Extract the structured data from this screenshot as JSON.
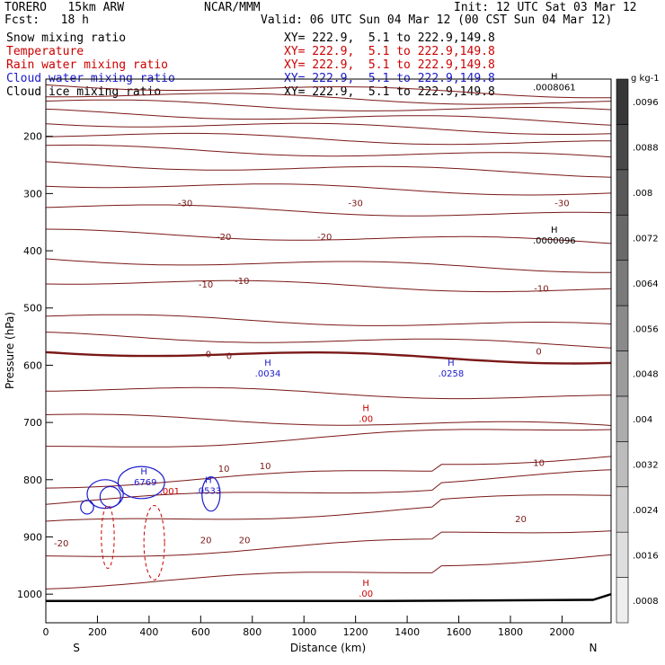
{
  "header": {
    "model": "TORERO   15km ARW",
    "center": "NCAR/MMM",
    "init": "Init: 12 UTC Sat 03 Mar 12",
    "fcst": "Fcst:   18 h",
    "valid": "Valid: 06 UTC Sun 04 Mar 12 (00 CST Sun 04 Mar 12)"
  },
  "fields": [
    {
      "name": "Snow mixing ratio",
      "xy": "XY= 222.9,  5.1 to 222.9,149.8",
      "color": "#000000"
    },
    {
      "name": "Temperature",
      "xy": "XY= 222.9,  5.1 to 222.9,149.8",
      "color": "#cc0000"
    },
    {
      "name": "Rain water mixing ratio",
      "xy": "XY= 222.9,  5.1 to 222.9,149.8",
      "color": "#cc0000"
    },
    {
      "name": "Cloud water mixing ratio",
      "xy": "XY= 222.9,  5.1 to 222.9,149.8",
      "color": "#1a1acc"
    },
    {
      "name": "Cloud ice mixing ratio",
      "xy": "XY= 222.9,  5.1 to 222.9,149.8",
      "color": "#000000"
    }
  ],
  "chart_data": {
    "type": "cross-section",
    "xlabel": "Distance (km)",
    "ylabel": "Pressure (hPa)",
    "xlim": [
      0,
      2190
    ],
    "ylim": [
      1050,
      100
    ],
    "xticks": [
      0,
      200,
      400,
      600,
      800,
      1000,
      1200,
      1400,
      1600,
      1800,
      2000
    ],
    "yticks": [
      200,
      300,
      400,
      500,
      600,
      700,
      800,
      900,
      1000
    ],
    "x_end_labels": {
      "left": "S",
      "right": "N"
    },
    "colorbar": {
      "unit": "g kg-1",
      "labels": [
        ".0008",
        ".0016",
        ".0024",
        ".0032",
        ".004",
        ".0048",
        ".0056",
        ".0064",
        ".0072",
        ".008",
        ".0088",
        ".0096"
      ],
      "levels": [
        0.0008,
        0.0016,
        0.0024,
        0.0032,
        0.004,
        0.0048,
        0.0056,
        0.0064,
        0.0072,
        0.008,
        0.0088,
        0.0096
      ]
    },
    "temperature_labels": [
      {
        "x": 540,
        "p": 316,
        "text": "-30"
      },
      {
        "x": 1200,
        "p": 316,
        "text": "-30"
      },
      {
        "x": 2000,
        "p": 316,
        "text": "-30"
      },
      {
        "x": 690,
        "p": 375,
        "text": "-20"
      },
      {
        "x": 1080,
        "p": 375,
        "text": "-20"
      },
      {
        "x": 620,
        "p": 458,
        "text": "-10"
      },
      {
        "x": 760,
        "p": 452,
        "text": "-10"
      },
      {
        "x": 1920,
        "p": 465,
        "text": "-10"
      },
      {
        "x": 630,
        "p": 580,
        "text": "0"
      },
      {
        "x": 710,
        "p": 583,
        "text": "0"
      },
      {
        "x": 1910,
        "p": 575,
        "text": "0"
      },
      {
        "x": 690,
        "p": 780,
        "text": "10"
      },
      {
        "x": 850,
        "p": 775,
        "text": "10"
      },
      {
        "x": 1910,
        "p": 770,
        "text": "10"
      },
      {
        "x": 60,
        "p": 910,
        "text": "-20"
      },
      {
        "x": 620,
        "p": 905,
        "text": "20"
      },
      {
        "x": 770,
        "p": 905,
        "text": "20"
      },
      {
        "x": 1840,
        "p": 868,
        "text": "20"
      }
    ],
    "maxima_labels": [
      {
        "x": 1970,
        "p": 110,
        "mark": "H",
        "value": ".0008061",
        "color": "#000000"
      },
      {
        "x": 1970,
        "p": 378,
        "mark": "H",
        "value": ".0000096",
        "color": "#000000"
      },
      {
        "x": 860,
        "p": 610,
        "mark": "H",
        "value": ".0034",
        "color": "#1a1acc"
      },
      {
        "x": 1570,
        "p": 610,
        "mark": "H",
        "value": ".0258",
        "color": "#1a1acc"
      },
      {
        "x": 1240,
        "p": 690,
        "mark": "H",
        "value": ".00",
        "color": "#cc0000"
      },
      {
        "x": 380,
        "p": 800,
        "mark": "H",
        "value": ".6769",
        "color": "#1a1acc"
      },
      {
        "x": 630,
        "p": 815,
        "mark": "H",
        "value": ".0533",
        "color": "#1a1acc"
      },
      {
        "x": 480,
        "p": 816,
        "mark": "",
        "value": ".001",
        "color": "#cc0000"
      },
      {
        "x": 1240,
        "p": 995,
        "mark": "H",
        "value": ".00",
        "color": "#cc0000"
      }
    ],
    "temperature_isotherms": {
      "color": "#7a1818",
      "freezing_level_emphasized": true,
      "levels_hPa_at_left": [
        110,
        125,
        140,
        158,
        175,
        196,
        220,
        248,
        282,
        322,
        368,
        415,
        452,
        515,
        548,
        575,
        640,
        690,
        746,
        810,
        840,
        878,
        935,
        985
      ]
    }
  }
}
